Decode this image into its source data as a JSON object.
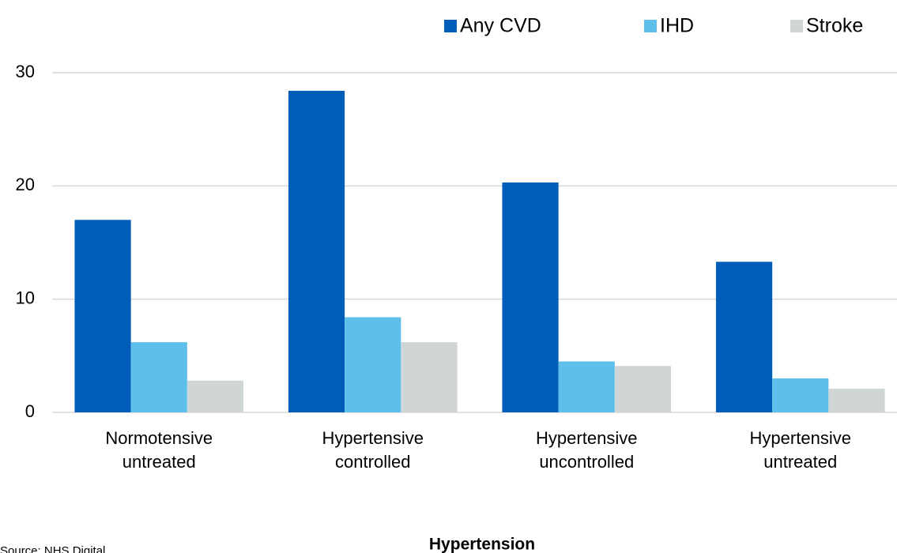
{
  "chart_data": {
    "type": "bar",
    "categories": [
      "Normotensive untreated",
      "Hypertensive controlled",
      "Hypertensive uncontrolled",
      "Hypertensive untreated"
    ],
    "series": [
      {
        "name": "Any CVD",
        "color": "#005eb8",
        "values": [
          17.0,
          28.4,
          20.3,
          13.3
        ]
      },
      {
        "name": "IHD",
        "color": "#5ec0ea",
        "values": [
          6.2,
          8.4,
          4.5,
          3.0
        ]
      },
      {
        "name": "Stroke",
        "color": "#d0d5d6",
        "values": [
          2.8,
          6.2,
          4.1,
          2.1
        ]
      }
    ],
    "ylim": [
      0,
      30
    ],
    "yticks": [
      0,
      10,
      20,
      30
    ],
    "grid": true,
    "xlabel": "Hypertension",
    "source": "Source: NHS Digital",
    "legend": "top-right"
  }
}
